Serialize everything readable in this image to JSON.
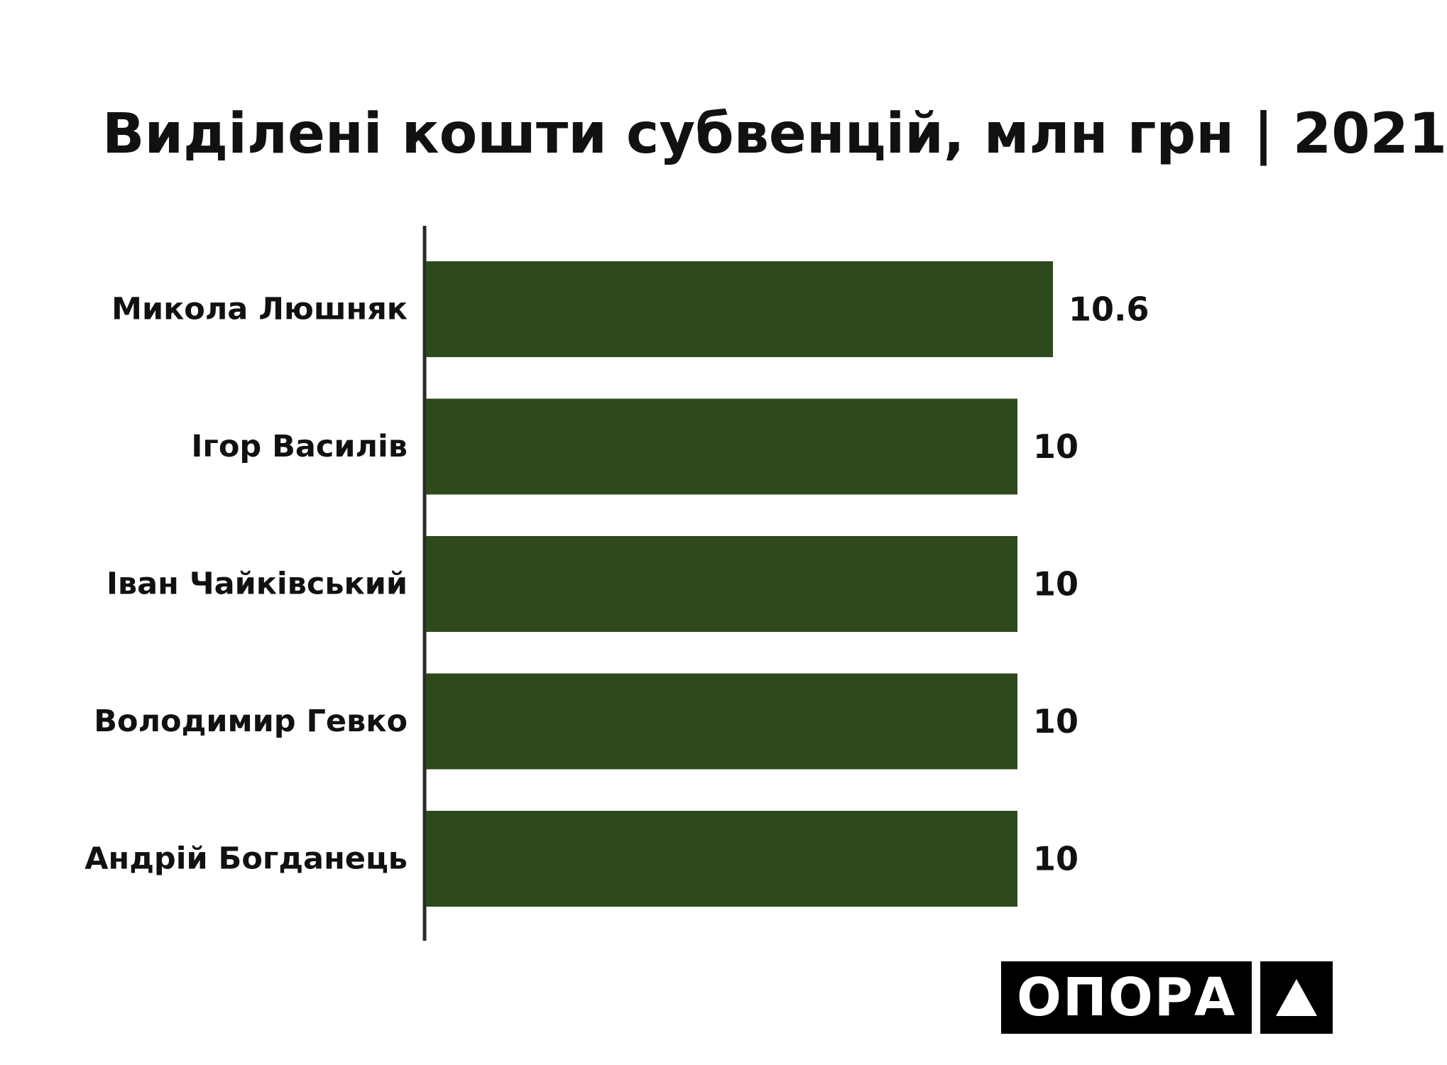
{
  "chart_data": {
    "type": "bar",
    "orientation": "horizontal",
    "title": "Виділені кошти субвенцій, млн грн | 2021",
    "categories": [
      "Микола Люшняк",
      "Ігор Василів",
      "Іван Чайківський",
      "Володимир Гевко",
      "Андрій Богданець"
    ],
    "values": [
      10.6,
      10,
      10,
      10,
      10
    ],
    "value_labels": [
      "10.6",
      "10",
      "10",
      "10",
      "10"
    ],
    "xlabel": "",
    "ylabel": "",
    "grid": false,
    "legend": "none",
    "bar_color": "#2e4a1c"
  },
  "logo": {
    "word": "ОПОРА"
  }
}
